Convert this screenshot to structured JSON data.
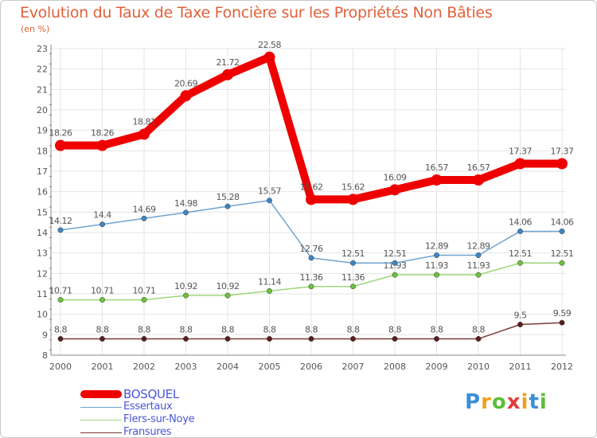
{
  "title": "Evolution du Taux de Taxe Foncière sur les Propriétés Non Bâties",
  "subtitle": "(en %)",
  "logo": {
    "text": "Proxiti",
    "letters": [
      "P",
      "r",
      "o",
      "x",
      "i",
      "t",
      "i"
    ],
    "colors": [
      "#3b8fd6",
      "#f0a020",
      "#5bbf3a",
      "#e23b3b",
      "#f0a020",
      "#3b8fd6",
      "#5bbf3a"
    ]
  },
  "chart_data": {
    "type": "line",
    "title": "Evolution du Taux de Taxe Foncière sur les Propriétés Non Bâties",
    "ylabel": "(en %)",
    "x": [
      "2000",
      "2001",
      "2002",
      "2003",
      "2004",
      "2005",
      "2006",
      "2007",
      "2008",
      "2009",
      "2010",
      "2011",
      "2012"
    ],
    "ylim": [
      8,
      23
    ],
    "yticks": [
      "8",
      "9",
      "10",
      "11",
      "12",
      "13",
      "14",
      "15",
      "16",
      "17",
      "18",
      "19",
      "20",
      "21",
      "22",
      "23"
    ],
    "grid": true,
    "legend_position": "bottom-left",
    "series": [
      {
        "name": "BOSQUEL",
        "color": "#ee0000",
        "weight": "thick",
        "values": [
          18.26,
          18.26,
          18.81,
          20.69,
          21.72,
          22.58,
          15.62,
          15.62,
          16.09,
          16.57,
          16.57,
          17.37,
          17.37
        ],
        "labels": [
          "18.26",
          "18.26",
          "18.81",
          "20.69",
          "21.72",
          "22.58",
          "15.62",
          "15.62",
          "16.09",
          "16.57",
          "16.57",
          "17.37",
          "17.37"
        ]
      },
      {
        "name": "Essertaux",
        "color": "#6fa3d0",
        "marker": "#3d86c6",
        "weight": "thin",
        "values": [
          14.12,
          14.4,
          14.69,
          14.98,
          15.28,
          15.57,
          12.76,
          12.51,
          12.51,
          12.89,
          12.89,
          14.06,
          14.06
        ],
        "labels": [
          "14.12",
          "14.4",
          "14.69",
          "14.98",
          "15.28",
          "15.57",
          "12.76",
          "12.51",
          "12.51",
          "12.89",
          "12.89",
          "14.06",
          "14.06"
        ]
      },
      {
        "name": "Flers-sur-Noye",
        "color": "#9ed67a",
        "marker": "#6cc23c",
        "weight": "thin",
        "values": [
          10.71,
          10.71,
          10.71,
          10.92,
          10.92,
          11.14,
          11.36,
          11.36,
          11.93,
          11.93,
          11.93,
          12.51,
          12.51
        ],
        "labels": [
          "10.71",
          "10.71",
          "10.71",
          "10.92",
          "10.92",
          "11.14",
          "11.36",
          "11.36",
          "11.93",
          "11.93",
          "11.93",
          "12.51",
          "12.51"
        ]
      },
      {
        "name": "Fransures",
        "color": "#7a3a3a",
        "marker": "#5a1e1e",
        "weight": "thin",
        "values": [
          8.8,
          8.8,
          8.8,
          8.8,
          8.8,
          8.8,
          8.8,
          8.8,
          8.8,
          8.8,
          8.8,
          9.5,
          9.59
        ],
        "labels": [
          "8.8",
          "8.8",
          "8.8",
          "8.8",
          "8.8",
          "8.8",
          "8.8",
          "8.8",
          "8.8",
          "8.8",
          "8.8",
          "9.5",
          "9.59"
        ]
      }
    ]
  }
}
